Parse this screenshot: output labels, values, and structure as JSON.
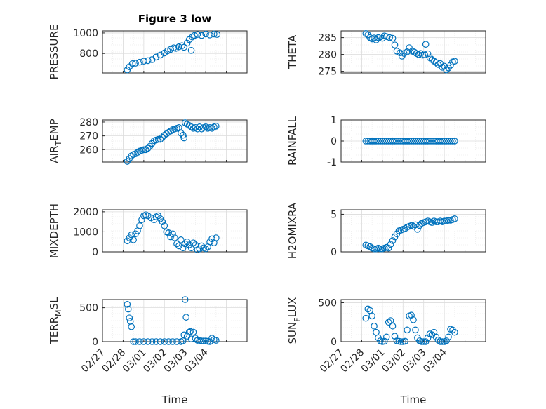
{
  "chart_data": [
    {
      "type": "scatter",
      "title": "Figure 3 low",
      "ylabel": "PRESSURE",
      "yticks": [
        800,
        1000
      ],
      "ylim": [
        610,
        1020
      ],
      "xlim": [
        0,
        7
      ],
      "series": [
        {
          "x": [
            1.2,
            1.3,
            1.45,
            1.6,
            1.8,
            2.0,
            2.2,
            2.4,
            2.6,
            2.8,
            3.0,
            3.15,
            3.3,
            3.45,
            3.55,
            3.7,
            3.85,
            3.95,
            4.1,
            4.2,
            4.3,
            4.35,
            4.45,
            4.6,
            4.8,
            5.0,
            5.2,
            5.4,
            5.55
          ],
          "y": [
            640,
            670,
            700,
            705,
            715,
            725,
            730,
            740,
            765,
            785,
            805,
            825,
            840,
            855,
            850,
            865,
            875,
            860,
            900,
            935,
            830,
            960,
            975,
            985,
            975,
            990,
            980,
            990,
            985
          ]
        }
      ]
    },
    {
      "type": "scatter",
      "title": "",
      "ylabel": "THETA",
      "yticks": [
        275,
        280,
        285
      ],
      "ylim": [
        274.5,
        287
      ],
      "xlim": [
        0,
        7
      ],
      "series": [
        {
          "x": [
            1.2,
            1.3,
            1.4,
            1.5,
            1.6,
            1.7,
            1.8,
            1.9,
            2.0,
            2.1,
            2.2,
            2.35,
            2.5,
            2.6,
            2.7,
            2.85,
            2.95,
            3.05,
            3.2,
            3.3,
            3.45,
            3.55,
            3.65,
            3.75,
            3.85,
            3.95,
            4.05,
            4.1,
            4.2,
            4.3,
            4.4,
            4.5,
            4.6,
            4.7,
            4.8,
            4.9,
            5.0,
            5.1,
            5.2,
            5.3,
            5.4,
            5.5
          ],
          "y": [
            286.2,
            285.8,
            285.0,
            284.6,
            284.9,
            284.3,
            285.0,
            285.2,
            284.8,
            285.5,
            285.3,
            285.0,
            284.8,
            282.8,
            281.0,
            280.5,
            279.5,
            280.3,
            280.8,
            282.0,
            281.0,
            280.7,
            280.3,
            280.0,
            280.3,
            279.8,
            279.9,
            283.0,
            280.2,
            279.0,
            278.5,
            278.0,
            277.6,
            277.0,
            277.3,
            276.2,
            276.5,
            275.4,
            276.0,
            276.8,
            277.8,
            278.0
          ]
        }
      ]
    },
    {
      "type": "scatter",
      "title": "",
      "ylabel": "AIR_TEMP",
      "yticks": [
        260,
        270,
        280
      ],
      "ylim": [
        251,
        281.5
      ],
      "xlim": [
        0,
        7
      ],
      "series": [
        {
          "x": [
            1.2,
            1.3,
            1.4,
            1.5,
            1.6,
            1.7,
            1.8,
            1.9,
            2.0,
            2.1,
            2.2,
            2.3,
            2.4,
            2.5,
            2.6,
            2.7,
            2.8,
            2.9,
            3.0,
            3.1,
            3.2,
            3.3,
            3.4,
            3.5,
            3.6,
            3.7,
            3.8,
            3.9,
            3.95,
            4.0,
            4.1,
            4.2,
            4.3,
            4.4,
            4.5,
            4.6,
            4.7,
            4.8,
            4.9,
            5.0,
            5.1,
            5.2,
            5.3,
            5.4,
            5.5
          ],
          "y": [
            251.5,
            253.5,
            255.5,
            256.5,
            257.0,
            258.0,
            259.0,
            259.5,
            260.0,
            260.0,
            261.0,
            262.5,
            264.5,
            266.5,
            267.0,
            267.5,
            267.5,
            269.0,
            270.5,
            271.5,
            272.5,
            273.5,
            274.5,
            275.0,
            275.5,
            276.0,
            272.0,
            270.5,
            268.5,
            279.5,
            278.5,
            277.5,
            276.5,
            275.5,
            276.0,
            275.0,
            276.5,
            275.0,
            276.0,
            276.5,
            275.5,
            276.0,
            275.5,
            276.5,
            277.0
          ]
        }
      ]
    },
    {
      "type": "scatter",
      "title": "",
      "ylabel": "RAINFALL",
      "yticks": [
        -1,
        0,
        1
      ],
      "ylim": [
        -1,
        1
      ],
      "xlim": [
        0,
        7
      ],
      "series": [
        {
          "x": [
            1.2,
            1.3,
            1.4,
            1.5,
            1.6,
            1.7,
            1.8,
            1.9,
            2.0,
            2.1,
            2.2,
            2.3,
            2.4,
            2.5,
            2.6,
            2.7,
            2.8,
            2.9,
            3.0,
            3.1,
            3.2,
            3.3,
            3.4,
            3.5,
            3.6,
            3.7,
            3.8,
            3.9,
            4.0,
            4.1,
            4.2,
            4.3,
            4.4,
            4.5,
            4.6,
            4.7,
            4.8,
            4.9,
            5.0,
            5.1,
            5.2,
            5.3,
            5.4,
            5.5
          ],
          "y": [
            0,
            0,
            0,
            0,
            0,
            0,
            0,
            0,
            0,
            0,
            0,
            0,
            0,
            0,
            0,
            0,
            0,
            0,
            0,
            0,
            0,
            0,
            0,
            0,
            0,
            0,
            0,
            0,
            0,
            0,
            0,
            0,
            0,
            0,
            0,
            0,
            0,
            0,
            0,
            0,
            0,
            0,
            0,
            0
          ]
        }
      ]
    },
    {
      "type": "scatter",
      "title": "",
      "ylabel": "MIXDEPTH",
      "yticks": [
        0,
        1000,
        2000
      ],
      "ylim": [
        0,
        2100
      ],
      "xlim": [
        0,
        7
      ],
      "series": [
        {
          "x": [
            1.2,
            1.3,
            1.4,
            1.5,
            1.6,
            1.7,
            1.8,
            1.9,
            2.0,
            2.1,
            2.2,
            2.35,
            2.5,
            2.6,
            2.7,
            2.8,
            2.9,
            3.0,
            3.1,
            3.2,
            3.3,
            3.4,
            3.5,
            3.6,
            3.7,
            3.8,
            3.9,
            4.0,
            4.1,
            4.2,
            4.3,
            4.4,
            4.5,
            4.6,
            4.7,
            4.8,
            4.9,
            5.0,
            5.1,
            5.2,
            5.3,
            5.4,
            5.5
          ],
          "y": [
            550,
            700,
            850,
            600,
            900,
            1050,
            1300,
            1600,
            1800,
            1850,
            1800,
            1700,
            1600,
            1750,
            1800,
            1650,
            1500,
            1300,
            1000,
            950,
            750,
            900,
            700,
            400,
            300,
            600,
            200,
            400,
            500,
            350,
            200,
            450,
            350,
            100,
            150,
            300,
            200,
            150,
            250,
            500,
            650,
            450,
            700
          ]
        }
      ]
    },
    {
      "type": "scatter",
      "title": "",
      "ylabel": "H2OMIXRA",
      "yticks": [
        0,
        5
      ],
      "ylim": [
        0,
        5.6
      ],
      "xlim": [
        0,
        7
      ],
      "series": [
        {
          "x": [
            1.2,
            1.3,
            1.4,
            1.5,
            1.6,
            1.7,
            1.8,
            1.9,
            2.0,
            2.1,
            2.2,
            2.3,
            2.4,
            2.5,
            2.6,
            2.7,
            2.8,
            2.9,
            3.0,
            3.1,
            3.2,
            3.3,
            3.4,
            3.5,
            3.6,
            3.7,
            3.8,
            3.9,
            4.0,
            4.1,
            4.2,
            4.3,
            4.4,
            4.5,
            4.6,
            4.7,
            4.8,
            4.9,
            5.0,
            5.1,
            5.2,
            5.3,
            5.4,
            5.5
          ],
          "y": [
            0.9,
            0.8,
            0.7,
            0.5,
            0.4,
            0.4,
            0.5,
            0.4,
            0.4,
            0.5,
            0.6,
            0.5,
            1.0,
            1.5,
            2.0,
            2.4,
            2.8,
            2.9,
            3.0,
            3.1,
            3.3,
            3.4,
            3.5,
            3.4,
            3.6,
            3.0,
            3.5,
            3.8,
            3.9,
            4.0,
            4.1,
            4.0,
            3.9,
            4.1,
            4.0,
            4.0,
            4.1,
            4.0,
            4.1,
            4.1,
            4.2,
            4.2,
            4.3,
            4.4
          ]
        }
      ]
    },
    {
      "type": "scatter",
      "title": "",
      "ylabel": "TERR_MSL",
      "yticks": [
        0,
        500
      ],
      "ylim": [
        0,
        620
      ],
      "xlim": [
        0,
        7
      ],
      "series": [
        {
          "x": [
            1.2,
            1.25,
            1.3,
            1.35,
            1.4,
            1.5,
            1.6,
            1.8,
            2.0,
            2.2,
            2.4,
            2.6,
            2.8,
            3.0,
            3.2,
            3.4,
            3.6,
            3.8,
            3.9,
            3.95,
            4.0,
            4.05,
            4.1,
            4.2,
            4.25,
            4.3,
            4.4,
            4.5,
            4.6,
            4.7,
            4.8,
            4.9,
            5.0,
            5.1,
            5.2,
            5.3,
            5.4,
            5.5
          ],
          "y": [
            550,
            480,
            350,
            300,
            220,
            0,
            0,
            0,
            0,
            0,
            0,
            0,
            0,
            0,
            0,
            0,
            0,
            0,
            10,
            100,
            620,
            360,
            80,
            140,
            150,
            40,
            140,
            50,
            20,
            20,
            10,
            10,
            10,
            5,
            0,
            50,
            30,
            20
          ]
        }
      ]
    },
    {
      "type": "scatter",
      "title": "",
      "ylabel": "SUN_FLUX",
      "yticks": [
        0,
        500
      ],
      "ylim": [
        0,
        540
      ],
      "xlim": [
        0,
        7
      ],
      "series": [
        {
          "x": [
            1.2,
            1.3,
            1.4,
            1.5,
            1.6,
            1.7,
            1.8,
            1.9,
            2.0,
            2.1,
            2.2,
            2.3,
            2.4,
            2.5,
            2.6,
            2.7,
            2.8,
            2.9,
            3.0,
            3.1,
            3.2,
            3.3,
            3.4,
            3.5,
            3.6,
            3.7,
            3.8,
            3.9,
            4.0,
            4.1,
            4.2,
            4.3,
            4.4,
            4.5,
            4.6,
            4.7,
            4.8,
            4.9,
            5.0,
            5.1,
            5.2,
            5.3,
            5.4,
            5.5
          ],
          "y": [
            300,
            420,
            400,
            330,
            200,
            120,
            50,
            10,
            0,
            5,
            60,
            250,
            270,
            200,
            70,
            10,
            5,
            0,
            0,
            5,
            150,
            330,
            340,
            280,
            150,
            50,
            10,
            0,
            0,
            0,
            50,
            100,
            90,
            120,
            60,
            20,
            0,
            0,
            0,
            10,
            60,
            160,
            150,
            120
          ]
        }
      ]
    }
  ],
  "xaxis": {
    "label": "Time",
    "ticks": [
      "02/27",
      "02/28",
      "03/01",
      "03/02",
      "03/03",
      "03/04"
    ]
  },
  "colors": {
    "marker": "#0072BD",
    "text": "#262626",
    "grid": "#dcdcdc"
  }
}
